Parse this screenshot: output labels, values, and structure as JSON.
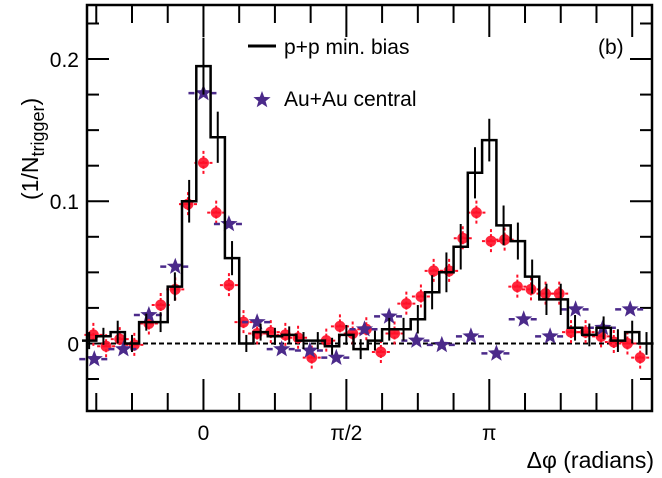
{
  "chart_data": {
    "type": "line",
    "title": "",
    "panel_label": "(b)",
    "xlabel": "Δφ (radians)",
    "ylabel": "(1/N",
    "ylabel_sub": "trigger",
    "ylabel_close": ")",
    "xlim": [
      -1.28,
      4.93
    ],
    "ylim": [
      -0.0475,
      0.238
    ],
    "x_major_ticks": [
      0,
      1.5708,
      3.1416,
      4.7124
    ],
    "x_tick_labels": [
      {
        "value": 0,
        "label": "0"
      },
      {
        "value": 1.5708,
        "label": "π/2"
      },
      {
        "value": 3.1416,
        "label": "π"
      }
    ],
    "x_minor_step": 0.3927,
    "y_tick_labels": [
      {
        "value": 0,
        "label": "0"
      },
      {
        "value": 0.1,
        "label": "0.1"
      },
      {
        "value": 0.2,
        "label": "0.2"
      }
    ],
    "y_minor_step": 0.025,
    "zero_line": true,
    "legend": {
      "placement": "top-center",
      "entries": [
        {
          "label": "p+p min. bias",
          "marker": "line"
        },
        {
          "label": "Au+Au central",
          "marker": "star"
        }
      ]
    },
    "series": [
      {
        "name": "p+p min. bias",
        "style": "histogram",
        "color": "#000000",
        "bin_width": 0.15708,
        "x": [
          -1.2566,
          -1.0996,
          -0.9425,
          -0.7854,
          -0.6283,
          -0.4712,
          -0.3142,
          -0.1571,
          0,
          0.1571,
          0.3142,
          0.4712,
          0.6283,
          0.7854,
          0.9425,
          1.0996,
          1.2566,
          1.4137,
          1.5708,
          1.7279,
          1.885,
          2.042,
          2.1991,
          2.3562,
          2.5133,
          2.6704,
          2.8274,
          2.9845,
          3.1416,
          3.2987,
          3.4558,
          3.6128,
          3.7699,
          3.927,
          4.0841,
          4.2412,
          4.3982,
          4.5553,
          4.7124,
          4.8695
        ],
        "values": [
          0.002,
          0.005,
          0.008,
          0.0,
          0.015,
          0.015,
          0.04,
          0.1,
          0.195,
          0.145,
          0.06,
          0.0,
          0.008,
          0.005,
          0.006,
          0.002,
          0.002,
          -0.002,
          0.006,
          -0.004,
          0.002,
          0.01,
          0.01,
          0.017,
          0.036,
          0.05,
          0.068,
          0.12,
          0.143,
          0.083,
          0.072,
          0.047,
          0.031,
          0.031,
          0.011,
          0.006,
          0.011,
          0.002,
          0.008,
          0.0
        ],
        "errors": [
          0.006,
          0.006,
          0.008,
          0.006,
          0.006,
          0.007,
          0.01,
          0.015,
          0.02,
          0.018,
          0.012,
          0.006,
          0.006,
          0.006,
          0.006,
          0.006,
          0.006,
          0.006,
          0.007,
          0.007,
          0.007,
          0.008,
          0.008,
          0.01,
          0.012,
          0.014,
          0.016,
          0.018,
          0.015,
          0.014,
          0.013,
          0.012,
          0.011,
          0.011,
          0.009,
          0.008,
          0.008,
          0.008,
          0.008,
          0.008
        ]
      },
      {
        "name": "Au+Au central",
        "style": "star",
        "color": "#4b2a8a",
        "x": [
          -1.2,
          -0.88,
          -0.6,
          -0.31,
          0,
          0.28,
          0.59,
          0.86,
          1.17,
          1.46,
          1.77,
          2.04,
          2.34,
          2.62,
          2.94,
          3.22,
          3.52,
          3.81,
          4.09,
          4.39,
          4.69
        ],
        "values": [
          -0.011,
          -0.004,
          0.02,
          0.054,
          0.176,
          0.084,
          0.015,
          -0.004,
          -0.005,
          -0.01,
          0.01,
          0.019,
          0.002,
          -0.001,
          0.005,
          -0.007,
          0.017,
          0.005,
          0.024,
          0.011,
          0.024
        ]
      },
      {
        "name": "",
        "style": "circle",
        "color": "#ff1028",
        "x": [
          -1.21,
          -1.07,
          -0.92,
          -0.76,
          -0.6,
          -0.47,
          -0.31,
          -0.17,
          0,
          0.14,
          0.28,
          0.44,
          0.59,
          0.74,
          0.9,
          1.04,
          1.19,
          1.35,
          1.5,
          1.64,
          1.79,
          1.95,
          2.1,
          2.23,
          2.39,
          2.53,
          2.7,
          2.85,
          3.0,
          3.16,
          3.31,
          3.45,
          3.6,
          3.76,
          3.91,
          4.04,
          4.2,
          4.37,
          4.51,
          4.66,
          4.8
        ],
        "values": [
          0.006,
          -0.002,
          0.003,
          -0.001,
          0.014,
          0.027,
          0.038,
          0.098,
          0.127,
          0.092,
          0.041,
          0.015,
          0.007,
          0.008,
          0.006,
          0.004,
          -0.01,
          0.002,
          0.012,
          0.007,
          0.01,
          -0.006,
          0.007,
          0.028,
          0.033,
          0.051,
          0.051,
          0.074,
          0.092,
          0.072,
          0.073,
          0.04,
          0.038,
          0.035,
          0.035,
          0.008,
          0.008,
          0.005,
          0.001,
          0.0,
          -0.01
        ]
      }
    ]
  }
}
